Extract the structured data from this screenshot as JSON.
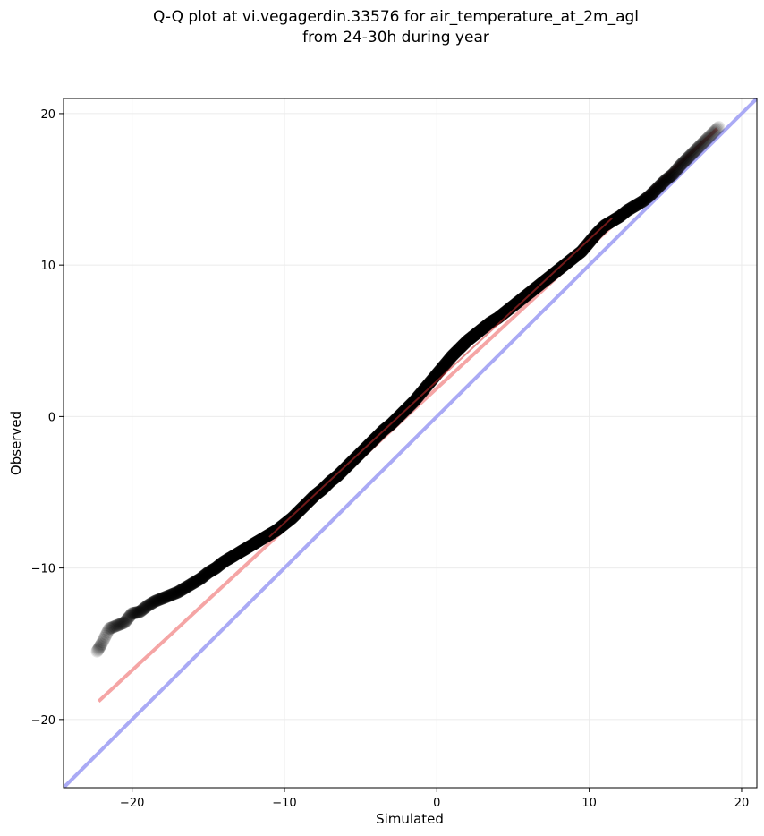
{
  "chart_data": {
    "type": "scatter",
    "title": "Q-Q plot at vi.vegagerdin.33576 for air_temperature_at_2m_agl",
    "subtitle": "from 24-30h during year",
    "xlabel": "Simulated",
    "ylabel": "Observed",
    "xlim": [
      -24.5,
      21.0
    ],
    "ylim": [
      -24.5,
      21.0
    ],
    "xticks": [
      -20,
      -10,
      0,
      10,
      20
    ],
    "yticks": [
      -20,
      -10,
      0,
      10,
      20
    ],
    "xtick_labels": [
      "−20",
      "−10",
      "0",
      "10",
      "20"
    ],
    "ytick_labels": [
      "−20",
      "−10",
      "0",
      "10",
      "20"
    ],
    "grid": true,
    "identity_line": {
      "color": "#aaaaf5",
      "from": [
        -24.5,
        -24.5
      ],
      "to": [
        21.0,
        21.0
      ]
    },
    "fit_line": {
      "color": "#f5a5a5",
      "from": [
        -22.2,
        -18.8
      ],
      "to": [
        18.4,
        19.0
      ]
    },
    "qq_curve": {
      "color": "#000000",
      "x": [
        -22.3,
        -22.0,
        -21.5,
        -21.0,
        -20.5,
        -20.0,
        -19.5,
        -19.0,
        -18.5,
        -18.0,
        -17.5,
        -17.0,
        -16.5,
        -16.0,
        -15.5,
        -15.0,
        -14.5,
        -14.0,
        -13.5,
        -13.0,
        -12.5,
        -12.0,
        -11.5,
        -11.0,
        -10.5,
        -10.0,
        -9.5,
        -9.0,
        -8.5,
        -8.0,
        -7.5,
        -7.0,
        -6.5,
        -6.0,
        -5.5,
        -5.0,
        -4.5,
        -4.0,
        -3.5,
        -3.0,
        -2.5,
        -2.0,
        -1.5,
        -1.0,
        -0.5,
        0.0,
        0.5,
        1.0,
        1.5,
        2.0,
        2.5,
        3.0,
        3.5,
        4.0,
        4.5,
        5.0,
        5.5,
        6.0,
        6.5,
        7.0,
        7.5,
        8.0,
        8.5,
        9.0,
        9.5,
        10.0,
        10.5,
        11.0,
        11.5,
        12.0,
        12.5,
        13.0,
        13.5,
        14.0,
        14.5,
        15.0,
        15.5,
        16.0,
        16.5,
        17.0,
        17.5,
        18.0,
        18.5
      ],
      "y": [
        -15.5,
        -15.0,
        -14.0,
        -13.8,
        -13.6,
        -13.0,
        -12.9,
        -12.5,
        -12.2,
        -12.0,
        -11.8,
        -11.6,
        -11.3,
        -11.0,
        -10.7,
        -10.3,
        -10.0,
        -9.6,
        -9.3,
        -9.0,
        -8.7,
        -8.4,
        -8.1,
        -7.8,
        -7.5,
        -7.1,
        -6.7,
        -6.2,
        -5.7,
        -5.2,
        -4.8,
        -4.3,
        -3.9,
        -3.4,
        -2.9,
        -2.4,
        -1.9,
        -1.4,
        -0.9,
        -0.5,
        0.0,
        0.5,
        1.0,
        1.6,
        2.2,
        2.8,
        3.4,
        4.0,
        4.5,
        5.0,
        5.4,
        5.8,
        6.2,
        6.5,
        6.9,
        7.3,
        7.7,
        8.1,
        8.5,
        8.9,
        9.3,
        9.7,
        10.1,
        10.5,
        10.9,
        11.5,
        12.1,
        12.6,
        12.9,
        13.2,
        13.6,
        13.9,
        14.2,
        14.6,
        15.1,
        15.6,
        16.0,
        16.6,
        17.1,
        17.6,
        18.1,
        18.6,
        19.1
      ],
      "alpha_mid": 0.55,
      "alpha_tail": 0.1
    }
  }
}
